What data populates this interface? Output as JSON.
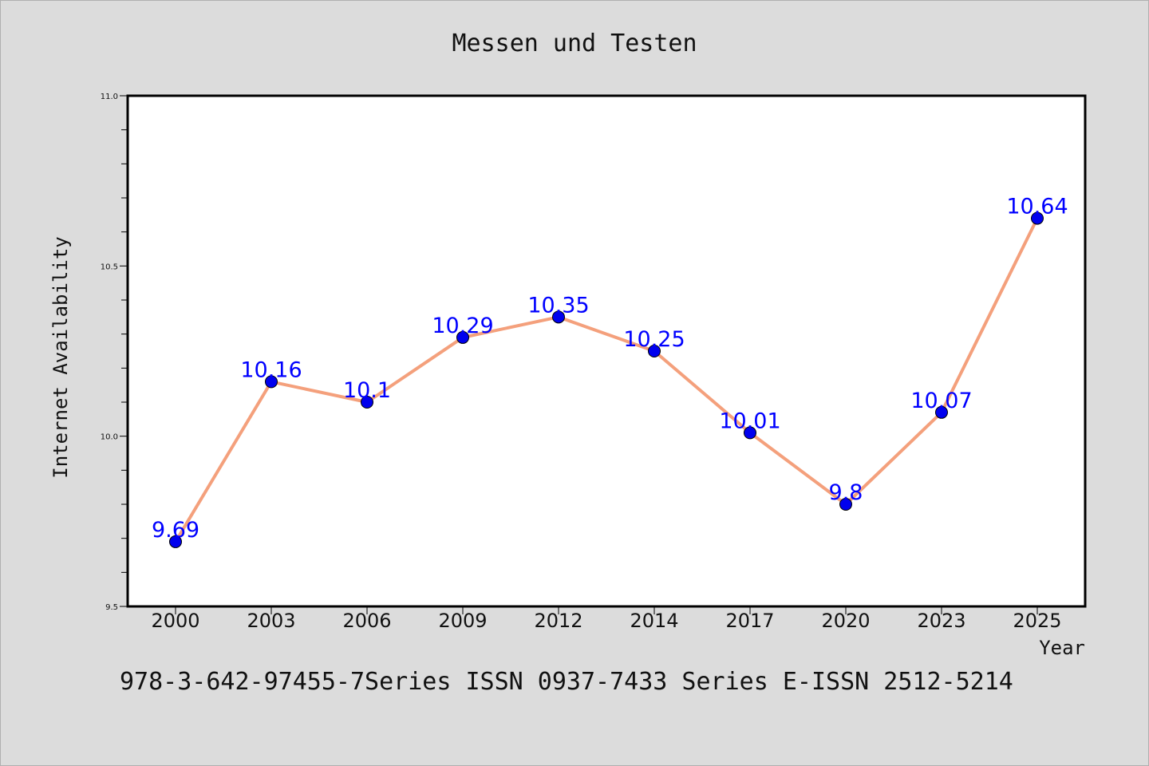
{
  "chart_data": {
    "type": "line",
    "title": "Messen und Testen",
    "xlabel": "Year",
    "ylabel": "Internet Availability",
    "categories": [
      "2000",
      "2003",
      "2006",
      "2009",
      "2012",
      "2014",
      "2017",
      "2020",
      "2023",
      "2025"
    ],
    "series": [
      {
        "values": [
          9.69,
          10.16,
          10.1,
          10.29,
          10.35,
          10.25,
          10.01,
          9.8,
          10.07,
          10.64
        ],
        "data_labels": [
          "9.69",
          "10.16",
          "10.1",
          "10.29",
          "10.35",
          "10.25",
          "10.01",
          "9.8",
          "10.07",
          "10.64"
        ],
        "line_color": "#f4a07c",
        "marker_color": "#0000ee"
      }
    ],
    "ylim": [
      9.5,
      11.0
    ],
    "yticks": [
      "9.5",
      "10.0",
      "10.5",
      "11.0"
    ],
    "grid": false,
    "label_color": "#0000ff"
  },
  "footer": {
    "text": "978-3-642-97455-7Series ISSN 0937-7433 Series E-ISSN 2512-5214"
  }
}
